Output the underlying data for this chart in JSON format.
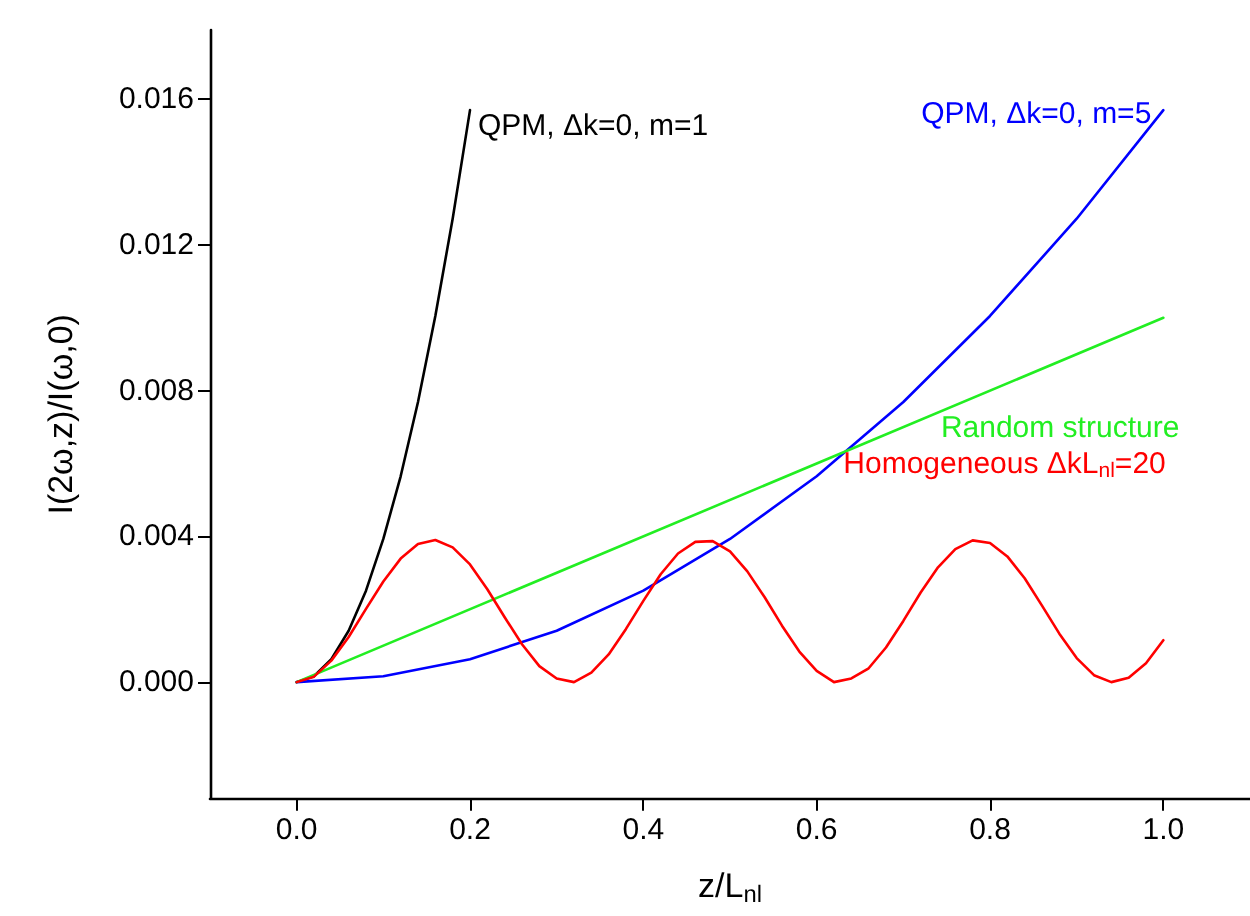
{
  "chart_data": {
    "type": "line",
    "xlabel": "z/L$_{nl}$",
    "ylabel": "I(2ω,z)/I(ω,0)",
    "xlim": [
      -0.1,
      1.1
    ],
    "ylim": [
      -0.0032,
      0.0179
    ],
    "xticks": [
      {
        "value": 0,
        "label": "0.0"
      },
      {
        "value": 0.2,
        "label": "0.2"
      },
      {
        "value": 0.4,
        "label": "0.4"
      },
      {
        "value": 0.6,
        "label": "0.6"
      },
      {
        "value": 0.8,
        "label": "0.8"
      },
      {
        "value": 1,
        "label": "1.0"
      }
    ],
    "yticks": [
      {
        "value": 0,
        "label": "0.000"
      },
      {
        "value": 0.004,
        "label": "0.004"
      },
      {
        "value": 0.008,
        "label": "0.008"
      },
      {
        "value": 0.012,
        "label": "0.012"
      },
      {
        "value": 0.016,
        "label": "0.016"
      }
    ],
    "grid": false,
    "legend": false,
    "marker": "none",
    "line_style": "solid",
    "series": [
      {
        "name": "QPM, Δk=0, m=1",
        "color": "#000000",
        "x": [
          0,
          0.02,
          0.04,
          0.06,
          0.08,
          0.1,
          0.12,
          0.14,
          0.16,
          0.18,
          0.2
        ],
        "values": [
          0,
          0.00016,
          0.00063,
          0.00141,
          0.00251,
          0.00393,
          0.00565,
          0.00769,
          0.01005,
          0.01272,
          0.0157
        ]
      },
      {
        "name": "QPM, Δk=0, m=5",
        "color": "#0000ff",
        "x": [
          0,
          0.1,
          0.2,
          0.3,
          0.4,
          0.5,
          0.6,
          0.7,
          0.8,
          0.9,
          1
        ],
        "values": [
          0,
          0.00016,
          0.00063,
          0.00141,
          0.00251,
          0.00393,
          0.00565,
          0.00769,
          0.01005,
          0.01272,
          0.0157
        ]
      },
      {
        "name": "Random structure",
        "color": "#22ee22",
        "x": [
          0,
          1
        ],
        "values": [
          0,
          0.01
        ]
      },
      {
        "name": "Homogeneous ΔkL$_{nl}$=20",
        "color": "#ff0000",
        "x": [
          0,
          0.02,
          0.04,
          0.06,
          0.08,
          0.1,
          0.12,
          0.14,
          0.16,
          0.18,
          0.2,
          0.22,
          0.24,
          0.26,
          0.28,
          0.3,
          0.32,
          0.34,
          0.36,
          0.38,
          0.4,
          0.42,
          0.44,
          0.46,
          0.48,
          0.5,
          0.52,
          0.54,
          0.56,
          0.58,
          0.6,
          0.62,
          0.64,
          0.66,
          0.68,
          0.7,
          0.72,
          0.74,
          0.76,
          0.78,
          0.8,
          0.82,
          0.84,
          0.86,
          0.88,
          0.9,
          0.92,
          0.94,
          0.96,
          0.98,
          1
        ],
        "values": [
          0,
          0.00015,
          0.00059,
          0.00124,
          0.00201,
          0.00276,
          0.00339,
          0.00379,
          0.0039,
          0.0037,
          0.00323,
          0.00255,
          0.00178,
          0.00104,
          0.00044,
          0.0001,
          0,
          0.00026,
          0.00076,
          0.00146,
          0.00223,
          0.00296,
          0.00353,
          0.00385,
          0.00387,
          0.00359,
          0.00304,
          0.00233,
          0.00155,
          0.00084,
          0.00031,
          0,
          0.0001,
          0.00038,
          0.00095,
          0.00168,
          0.00246,
          0.00315,
          0.00365,
          0.00389,
          0.00382,
          0.00345,
          0.00285,
          0.0021,
          0.00133,
          0.00066,
          0.00019,
          0,
          0.00012,
          0.00052,
          0.00115
        ]
      }
    ]
  }
}
